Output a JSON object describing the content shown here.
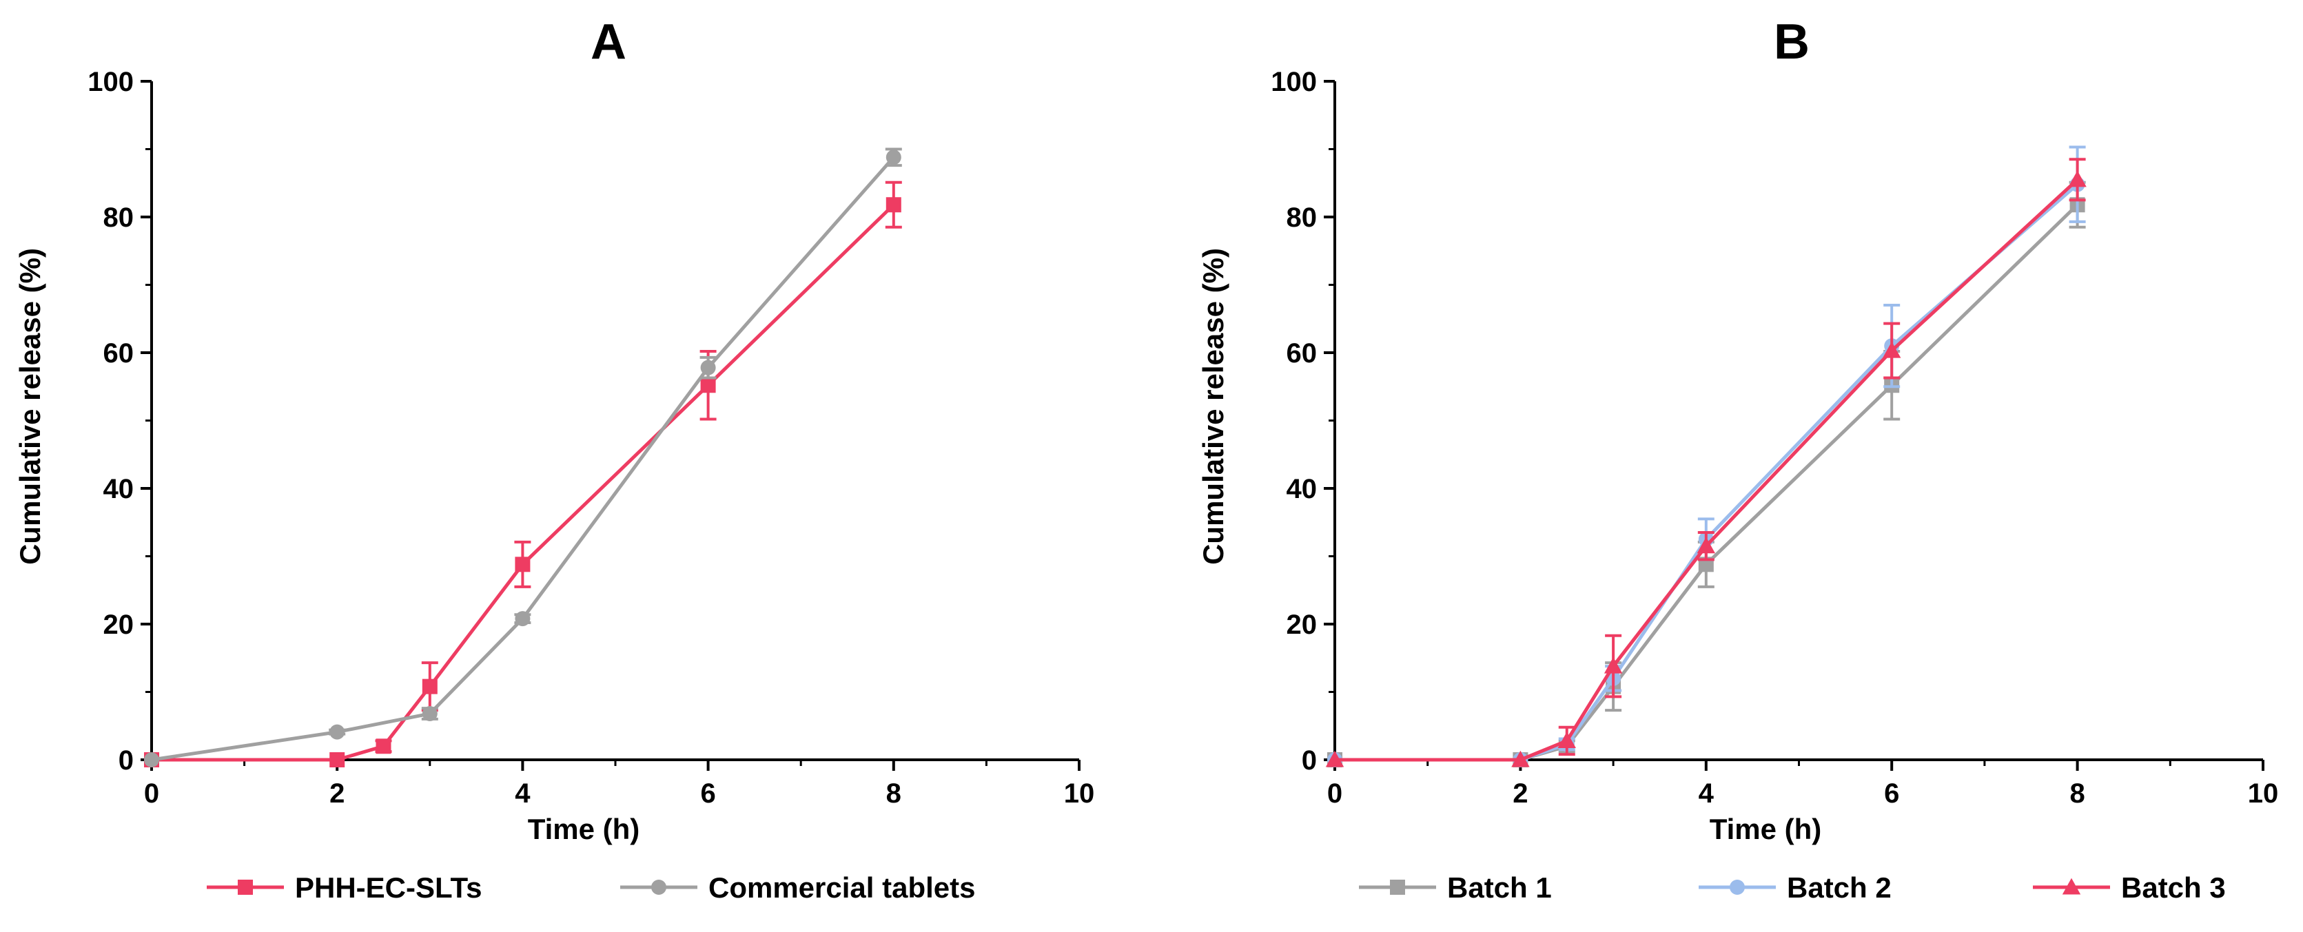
{
  "chart_data": [
    {
      "panel": "A",
      "type": "line",
      "title": "A",
      "xlabel": "Time (h)",
      "ylabel": "Cumulative release (%)",
      "xlim": [
        0,
        10
      ],
      "ylim": [
        0,
        100
      ],
      "xticks": [
        "0",
        "2",
        "4",
        "6",
        "8",
        "10"
      ],
      "yticks": [
        "0",
        "20",
        "40",
        "60",
        "80",
        "100"
      ],
      "legend_position": "bottom",
      "series": [
        {
          "name": "PHH-EC-SLTs",
          "color": "#ee3c62",
          "marker": "square",
          "x": [
            0,
            2,
            2.5,
            3,
            4,
            6,
            8
          ],
          "y": [
            0,
            0,
            2.0,
            10.8,
            28.8,
            55.2,
            81.8
          ],
          "err": [
            0,
            0,
            0.8,
            3.5,
            3.3,
            5.0,
            3.3
          ]
        },
        {
          "name": "Commercial tablets",
          "color": "#a0a0a0",
          "marker": "circle",
          "x": [
            0,
            2,
            3,
            4,
            6,
            8
          ],
          "y": [
            0,
            4.1,
            6.8,
            20.8,
            57.8,
            88.8
          ],
          "err": [
            0,
            0.3,
            0.8,
            0.6,
            1.5,
            1.2
          ]
        }
      ]
    },
    {
      "panel": "B",
      "type": "line",
      "title": "B",
      "xlabel": "Time (h)",
      "ylabel": "Cumulative release (%)",
      "xlim": [
        0,
        10
      ],
      "ylim": [
        0,
        100
      ],
      "xticks": [
        "0",
        "2",
        "4",
        "6",
        "8",
        "10"
      ],
      "yticks": [
        "0",
        "20",
        "40",
        "60",
        "80",
        "100"
      ],
      "legend_position": "bottom",
      "series": [
        {
          "name": "Batch 1",
          "color": "#a0a0a0",
          "marker": "square",
          "x": [
            0,
            2,
            2.5,
            3,
            4,
            6,
            8
          ],
          "y": [
            0,
            0,
            2.0,
            10.8,
            28.8,
            55.2,
            81.8
          ],
          "err": [
            0,
            0,
            0.8,
            3.5,
            3.3,
            5.0,
            3.3
          ]
        },
        {
          "name": "Batch 2",
          "color": "#9bbcec",
          "marker": "circle",
          "x": [
            0,
            2,
            2.5,
            3,
            4,
            6,
            8
          ],
          "y": [
            0,
            0,
            2.3,
            12.0,
            32.5,
            61.0,
            84.8
          ],
          "err": [
            0,
            0,
            0.8,
            1.8,
            3.0,
            6.0,
            5.5
          ]
        },
        {
          "name": "Batch 3",
          "color": "#ee3c62",
          "marker": "triangle",
          "x": [
            0,
            2,
            2.5,
            3,
            4,
            6,
            8
          ],
          "y": [
            0,
            0,
            2.8,
            13.8,
            31.5,
            60.3,
            85.5
          ],
          "err": [
            0,
            0,
            2.0,
            4.5,
            2.0,
            4.0,
            3.0
          ]
        }
      ]
    }
  ]
}
